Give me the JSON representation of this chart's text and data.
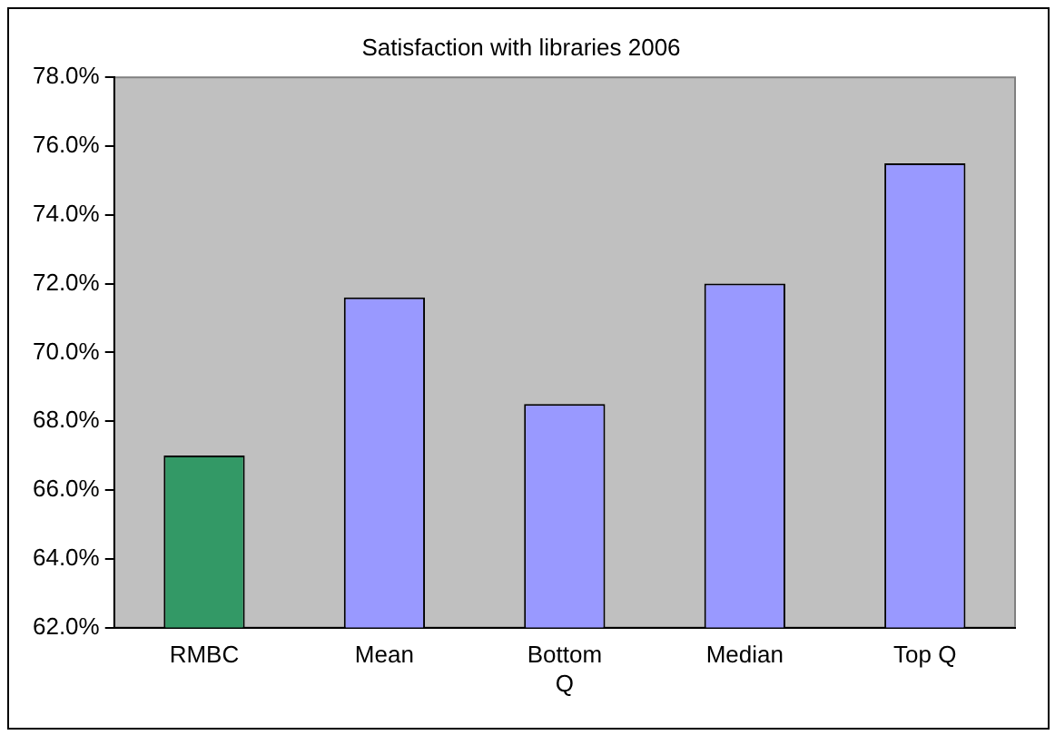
{
  "chart_data": {
    "type": "bar",
    "title": "Satisfaction with libraries 2006",
    "categories": [
      "RMBC",
      "Mean",
      "Bottom Q",
      "Median",
      "Top Q"
    ],
    "values": [
      67.0,
      71.6,
      68.5,
      72.0,
      75.5
    ],
    "colors": [
      "#339966",
      "#9999ff",
      "#9999ff",
      "#9999ff",
      "#9999ff"
    ],
    "ylim": [
      62,
      78
    ],
    "yticks": [
      {
        "value": 62,
        "label": "62.0%"
      },
      {
        "value": 64,
        "label": "64.0%"
      },
      {
        "value": 66,
        "label": "66.0%"
      },
      {
        "value": 68,
        "label": "68.0%"
      },
      {
        "value": 70,
        "label": "70.0%"
      },
      {
        "value": 72,
        "label": "72.0%"
      },
      {
        "value": 74,
        "label": "74.0%"
      },
      {
        "value": 76,
        "label": "76.0%"
      },
      {
        "value": 78,
        "label": "78.0%"
      }
    ],
    "grid": false,
    "legend": false
  }
}
